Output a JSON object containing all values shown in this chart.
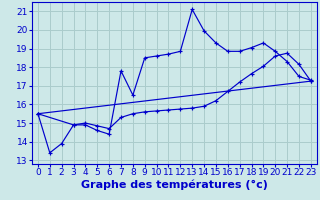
{
  "title": "",
  "xlabel": "Graphe des températures (°c)",
  "bg_color": "#cde8e8",
  "grid_color": "#aacccc",
  "line_color": "#0000cc",
  "xlim": [
    -0.5,
    23.5
  ],
  "ylim": [
    12.8,
    21.5
  ],
  "yticks": [
    13,
    14,
    15,
    16,
    17,
    18,
    19,
    20,
    21
  ],
  "xticks": [
    0,
    1,
    2,
    3,
    4,
    5,
    6,
    7,
    8,
    9,
    10,
    11,
    12,
    13,
    14,
    15,
    16,
    17,
    18,
    19,
    20,
    21,
    22,
    23
  ],
  "series1_x": [
    0,
    1,
    2,
    3,
    4,
    5,
    6,
    7,
    8,
    9,
    10,
    11,
    12,
    13,
    14,
    15,
    16,
    17,
    18,
    19,
    20,
    21,
    22,
    23
  ],
  "series1_y": [
    15.5,
    13.4,
    13.9,
    14.9,
    14.9,
    14.6,
    14.4,
    17.8,
    16.5,
    18.5,
    18.6,
    18.7,
    18.85,
    21.1,
    19.95,
    19.3,
    18.85,
    18.85,
    19.05,
    19.3,
    18.85,
    18.3,
    17.5,
    17.3
  ],
  "series2_x": [
    0,
    3,
    4,
    5,
    6,
    7,
    8,
    9,
    10,
    11,
    12,
    13,
    14,
    15,
    16,
    17,
    18,
    19,
    20,
    21,
    22,
    23
  ],
  "series2_y": [
    15.5,
    14.9,
    15.0,
    14.85,
    14.7,
    15.3,
    15.5,
    15.6,
    15.65,
    15.7,
    15.75,
    15.8,
    15.9,
    16.2,
    16.7,
    17.2,
    17.65,
    18.05,
    18.6,
    18.75,
    18.15,
    17.25
  ],
  "series3_x": [
    0,
    23
  ],
  "series3_y": [
    15.5,
    17.25
  ],
  "xlabel_fontsize": 8,
  "tick_fontsize": 6.5
}
